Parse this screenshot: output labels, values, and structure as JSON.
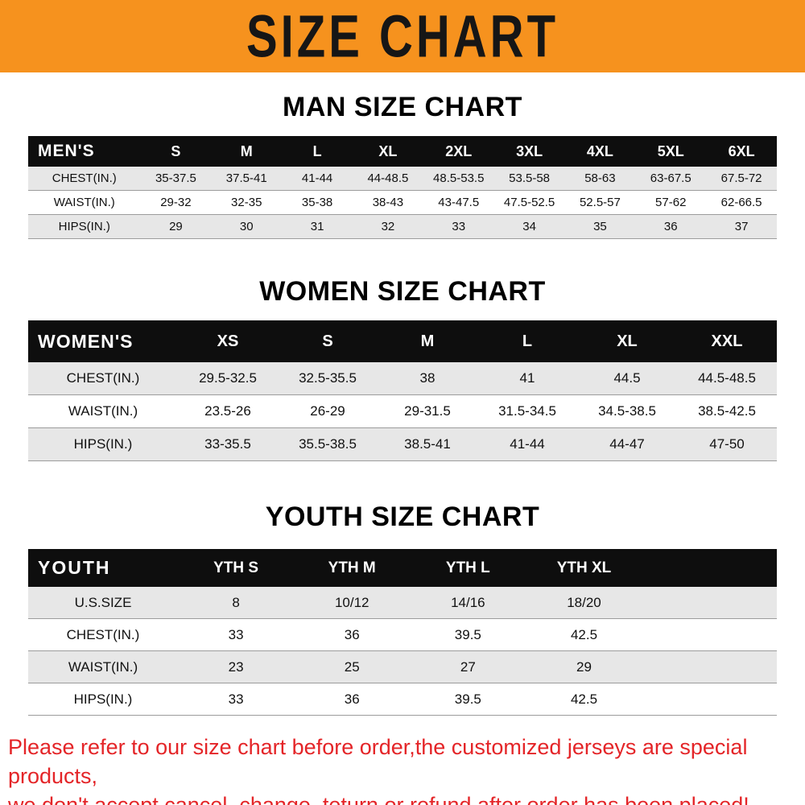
{
  "banner": {
    "title": "SIZE CHART"
  },
  "colors": {
    "banner_orange": "#f6921e",
    "table_header_black": "#0e0e0e",
    "stripe_gray": "#e7e7e7",
    "footer_red": "#e42528"
  },
  "sections": [
    {
      "heading": "MAN SIZE CHART",
      "table": {
        "header_label": "MEN'S",
        "columns": [
          "S",
          "M",
          "L",
          "XL",
          "2XL",
          "3XL",
          "4XL",
          "5XL",
          "6XL"
        ],
        "rows": [
          {
            "label": "CHEST(IN.)",
            "values": [
              "35-37.5",
              "37.5-41",
              "41-44",
              "44-48.5",
              "48.5-53.5",
              "53.5-58",
              "58-63",
              "63-67.5",
              "67.5-72"
            ]
          },
          {
            "label": "WAIST(IN.)",
            "values": [
              "29-32",
              "32-35",
              "35-38",
              "38-43",
              "43-47.5",
              "47.5-52.5",
              "52.5-57",
              "57-62",
              "62-66.5"
            ]
          },
          {
            "label": "HIPS(IN.)",
            "values": [
              "29",
              "30",
              "31",
              "32",
              "33",
              "34",
              "35",
              "36",
              "37"
            ]
          }
        ]
      }
    },
    {
      "heading": "WOMEN SIZE CHART",
      "table": {
        "header_label": "WOMEN'S",
        "columns": [
          "XS",
          "S",
          "M",
          "L",
          "XL",
          "XXL"
        ],
        "rows": [
          {
            "label": "CHEST(IN.)",
            "values": [
              "29.5-32.5",
              "32.5-35.5",
              "38",
              "41",
              "44.5",
              "44.5-48.5"
            ]
          },
          {
            "label": "WAIST(IN.)",
            "values": [
              "23.5-26",
              "26-29",
              "29-31.5",
              "31.5-34.5",
              "34.5-38.5",
              "38.5-42.5"
            ]
          },
          {
            "label": "HIPS(IN.)",
            "values": [
              "33-35.5",
              "35.5-38.5",
              "38.5-41",
              "41-44",
              "44-47",
              "47-50"
            ]
          }
        ]
      }
    },
    {
      "heading": "YOUTH SIZE CHART",
      "table": {
        "header_label": "YOUTH",
        "columns": [
          "YTH S",
          "YTH M",
          "YTH L",
          "YTH XL"
        ],
        "rows": [
          {
            "label": "U.S.SIZE",
            "values": [
              "8",
              "10/12",
              "14/16",
              "18/20"
            ]
          },
          {
            "label": "CHEST(IN.)",
            "values": [
              "33",
              "36",
              "39.5",
              "42.5"
            ]
          },
          {
            "label": "WAIST(IN.)",
            "values": [
              "23",
              "25",
              "27",
              "29"
            ]
          },
          {
            "label": "HIPS(IN.)",
            "values": [
              "33",
              "36",
              "39.5",
              "42.5"
            ]
          }
        ]
      }
    }
  ],
  "footer": {
    "lines": [
      "Please refer to our size chart before order,the customized jerseys are special products,",
      "we don't accept cancel, change, teturn or refund after order has been placed!"
    ]
  },
  "chart_data": [
    {
      "type": "table",
      "title": "MAN SIZE CHART",
      "columns": [
        "MEN'S",
        "S",
        "M",
        "L",
        "XL",
        "2XL",
        "3XL",
        "4XL",
        "5XL",
        "6XL"
      ],
      "rows": [
        [
          "CHEST(IN.)",
          "35-37.5",
          "37.5-41",
          "41-44",
          "44-48.5",
          "48.5-53.5",
          "53.5-58",
          "58-63",
          "63-67.5",
          "67.5-72"
        ],
        [
          "WAIST(IN.)",
          "29-32",
          "32-35",
          "35-38",
          "38-43",
          "43-47.5",
          "47.5-52.5",
          "52.5-57",
          "57-62",
          "62-66.5"
        ],
        [
          "HIPS(IN.)",
          "29",
          "30",
          "31",
          "32",
          "33",
          "34",
          "35",
          "36",
          "37"
        ]
      ]
    },
    {
      "type": "table",
      "title": "WOMEN SIZE CHART",
      "columns": [
        "WOMEN'S",
        "XS",
        "S",
        "M",
        "L",
        "XL",
        "XXL"
      ],
      "rows": [
        [
          "CHEST(IN.)",
          "29.5-32.5",
          "32.5-35.5",
          "38",
          "41",
          "44.5",
          "44.5-48.5"
        ],
        [
          "WAIST(IN.)",
          "23.5-26",
          "26-29",
          "29-31.5",
          "31.5-34.5",
          "34.5-38.5",
          "38.5-42.5"
        ],
        [
          "HIPS(IN.)",
          "33-35.5",
          "35.5-38.5",
          "38.5-41",
          "41-44",
          "44-47",
          "47-50"
        ]
      ]
    },
    {
      "type": "table",
      "title": "YOUTH SIZE CHART",
      "columns": [
        "YOUTH",
        "YTH S",
        "YTH M",
        "YTH L",
        "YTH XL"
      ],
      "rows": [
        [
          "U.S.SIZE",
          "8",
          "10/12",
          "14/16",
          "18/20"
        ],
        [
          "CHEST(IN.)",
          "33",
          "36",
          "39.5",
          "42.5"
        ],
        [
          "WAIST(IN.)",
          "23",
          "25",
          "27",
          "29"
        ],
        [
          "HIPS(IN.)",
          "33",
          "36",
          "39.5",
          "42.5"
        ]
      ]
    }
  ]
}
